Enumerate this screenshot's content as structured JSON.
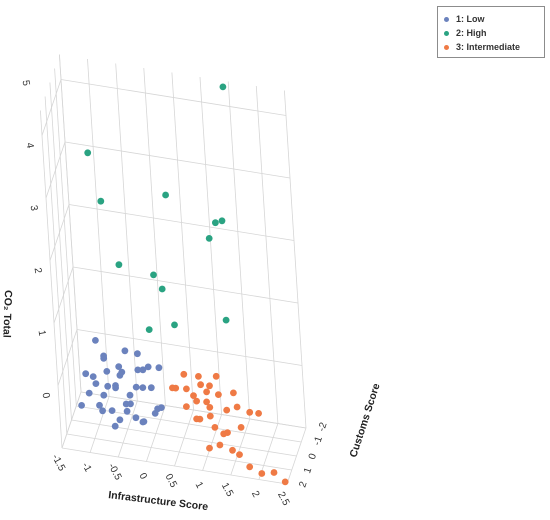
{
  "chart_data": {
    "type": "scatter3d",
    "xlabel": "Infrastructure Score",
    "ylabel": "Customs Score",
    "zlabel": "CO₂ Total",
    "x_ticks": [
      "-1.5",
      "-1",
      "-0.5",
      "0",
      "0.5",
      "1",
      "1.5",
      "2",
      "2.5"
    ],
    "y_ticks": [
      "-2",
      "-1",
      "0",
      "1",
      "2"
    ],
    "z_ticks": [
      "0",
      "1",
      "2",
      "3",
      "4",
      "5"
    ],
    "grid": true,
    "legend_position": "top-right",
    "series": [
      {
        "name": "1: Low",
        "color": "#6b82bd",
        "points": [
          [
            -1.1,
            0.5,
            0.6
          ],
          [
            -1.0,
            0.2,
            0.7
          ],
          [
            -0.9,
            0.8,
            0.5
          ],
          [
            -0.8,
            0.1,
            0.9
          ],
          [
            -0.7,
            0.6,
            0.4
          ],
          [
            -0.6,
            -0.2,
            0.8
          ],
          [
            -0.5,
            0.4,
            1.0
          ],
          [
            -0.4,
            0.9,
            0.5
          ],
          [
            -0.3,
            0.0,
            0.7
          ],
          [
            -0.2,
            0.5,
            1.1
          ],
          [
            -0.1,
            1.0,
            0.4
          ],
          [
            0.0,
            0.3,
            0.8
          ],
          [
            0.1,
            -0.3,
            1.0
          ],
          [
            -1.2,
            1.0,
            0.5
          ],
          [
            -0.9,
            -0.5,
            1.0
          ],
          [
            -0.6,
            1.2,
            0.3
          ],
          [
            -0.3,
            -0.6,
            1.1
          ],
          [
            0.2,
            0.7,
            0.6
          ],
          [
            -0.8,
            0.5,
            1.2
          ],
          [
            -0.5,
            0.0,
            0.4
          ],
          [
            -0.2,
            0.2,
            0.2
          ],
          [
            -1.0,
            -0.2,
            1.3
          ],
          [
            -0.7,
            1.1,
            0.9
          ],
          [
            0.0,
            -0.1,
            0.3
          ],
          [
            -0.4,
            0.6,
            1.4
          ],
          [
            -1.1,
            0.9,
            1.0
          ],
          [
            -0.6,
            0.3,
            0.2
          ],
          [
            -0.1,
            0.8,
            0.9
          ],
          [
            -0.9,
            0.3,
            0.3
          ],
          [
            -0.3,
            1.2,
            0.7
          ],
          [
            0.1,
            0.4,
            0.5
          ],
          [
            -0.7,
            -0.3,
            0.6
          ],
          [
            -0.5,
            0.9,
            1.2
          ],
          [
            -0.2,
            -0.4,
            0.9
          ],
          [
            -1.0,
            0.6,
            0.9
          ],
          [
            -0.8,
            0.9,
            0.7
          ],
          [
            -0.4,
            0.2,
            0.6
          ],
          [
            0.0,
            0.6,
            1.2
          ],
          [
            -0.6,
            0.7,
            0.8
          ],
          [
            -0.3,
            0.4,
            0.3
          ]
        ]
      },
      {
        "name": "2: High",
        "color": "#2aa382",
        "points": [
          [
            1.4,
            -2.0,
            5.3
          ],
          [
            -0.8,
            1.0,
            4.6
          ],
          [
            -0.6,
            1.2,
            3.9
          ],
          [
            0.5,
            0.5,
            4.0
          ],
          [
            -0.4,
            0.7,
            2.8
          ],
          [
            0.2,
            0.6,
            2.7
          ],
          [
            0.3,
            0.2,
            2.4
          ],
          [
            1.1,
            -0.8,
            3.1
          ],
          [
            1.2,
            -1.1,
            3.3
          ],
          [
            1.3,
            -1.3,
            3.3
          ],
          [
            0.1,
            1.0,
            1.9
          ],
          [
            0.5,
            0.4,
            1.9
          ],
          [
            1.3,
            -0.9,
            1.8
          ]
        ]
      },
      {
        "name": "3: Intermediate",
        "color": "#ef7a45",
        "points": [
          [
            0.4,
            0.5,
            0.9
          ],
          [
            0.5,
            0.9,
            1.0
          ],
          [
            0.6,
            0.3,
            1.1
          ],
          [
            0.7,
            1.2,
            0.8
          ],
          [
            0.8,
            0.8,
            0.9
          ],
          [
            0.9,
            1.5,
            0.7
          ],
          [
            1.0,
            1.9,
            0.8
          ],
          [
            1.1,
            1.5,
            1.0
          ],
          [
            1.2,
            2.0,
            0.9
          ],
          [
            1.3,
            2.3,
            0.8
          ],
          [
            1.4,
            1.8,
            0.6
          ],
          [
            1.5,
            2.1,
            0.7
          ],
          [
            1.6,
            2.4,
            0.5
          ],
          [
            1.7,
            2.2,
            0.4
          ],
          [
            1.9,
            2.5,
            0.3
          ],
          [
            2.1,
            2.4,
            0.2
          ],
          [
            2.3,
            2.2,
            0.2
          ],
          [
            2.5,
            2.3,
            0.1
          ],
          [
            1.2,
            2.5,
            0.5
          ],
          [
            1.4,
            2.6,
            0.6
          ],
          [
            0.6,
            0.0,
            0.8
          ],
          [
            0.8,
            0.3,
            0.7
          ],
          [
            1.0,
            0.4,
            0.9
          ],
          [
            0.9,
            0.7,
            1.2
          ],
          [
            1.1,
            1.0,
            0.8
          ],
          [
            1.3,
            1.3,
            1.1
          ],
          [
            1.6,
            1.1,
            0.9
          ],
          [
            1.8,
            0.9,
            0.8
          ],
          [
            1.5,
            0.6,
            1.0
          ],
          [
            1.2,
            0.5,
            1.2
          ],
          [
            1.7,
            1.6,
            0.7
          ],
          [
            1.4,
            1.0,
            0.8
          ],
          [
            0.9,
            0.4,
            1.0
          ],
          [
            1.1,
            0.8,
            1.1
          ],
          [
            2.0,
            1.3,
            0.9
          ]
        ]
      }
    ]
  }
}
